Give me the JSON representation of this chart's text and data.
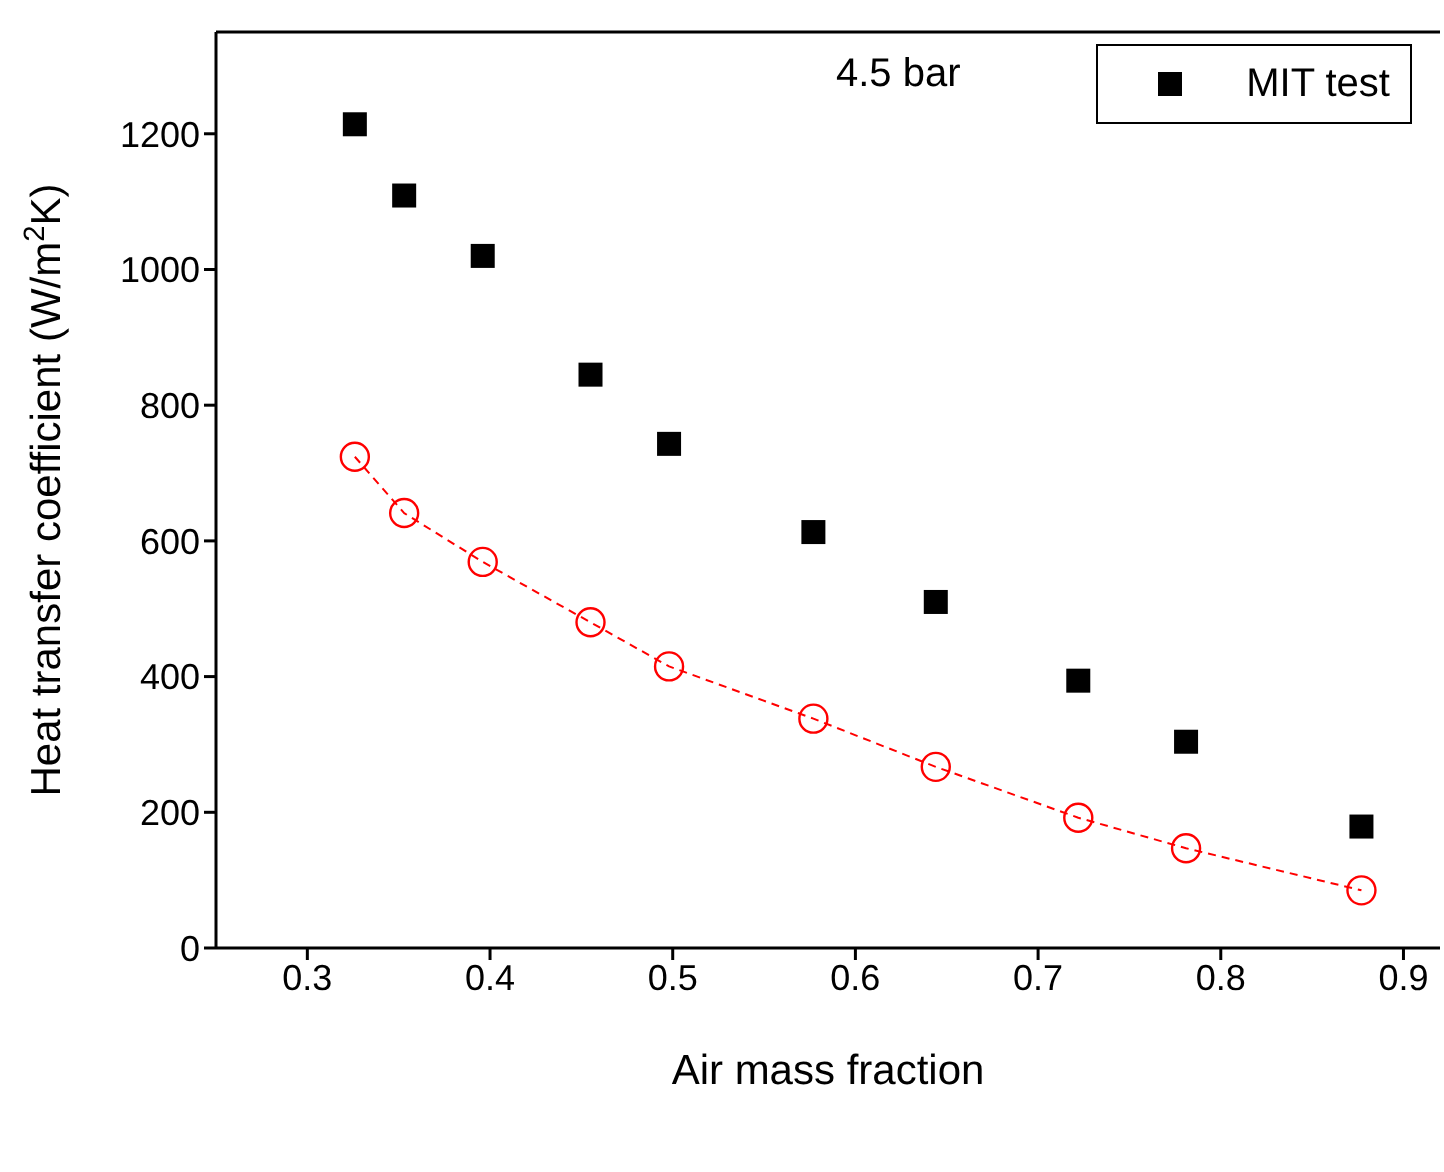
{
  "chart_data": {
    "type": "scatter",
    "xlabel": "Air mass fraction",
    "ylabel": "Heat transfer coefficient (W/m$^{2}$K)",
    "annotations": [
      "4.5 bar"
    ],
    "xlim": [
      0.25,
      0.92
    ],
    "xticks": [
      0.3,
      0.4,
      0.5,
      0.6,
      0.7,
      0.8,
      0.9
    ],
    "ylim": [
      0,
      1350
    ],
    "yticks": [
      0,
      200,
      400,
      600,
      800,
      1000,
      1200
    ],
    "grid": false,
    "legend": "top right",
    "series": [
      {
        "name": "MIT test",
        "marker": "square",
        "color": "#000000",
        "x": [
          0.326,
          0.353,
          0.396,
          0.455,
          0.498,
          0.577,
          0.644,
          0.722,
          0.781,
          0.877
        ],
        "values": [
          1214,
          1109,
          1020,
          845,
          743,
          613,
          510,
          394,
          304,
          179
        ]
      },
      {
        "type": "line",
        "marker": "circle",
        "line_style": "dashed",
        "color": "#ff0000",
        "x": [
          0.326,
          0.353,
          0.396,
          0.455,
          0.498,
          0.577,
          0.644,
          0.722,
          0.781,
          0.877
        ],
        "values": [
          724,
          641,
          569,
          480,
          415,
          338,
          267,
          192,
          147,
          85
        ]
      }
    ]
  }
}
